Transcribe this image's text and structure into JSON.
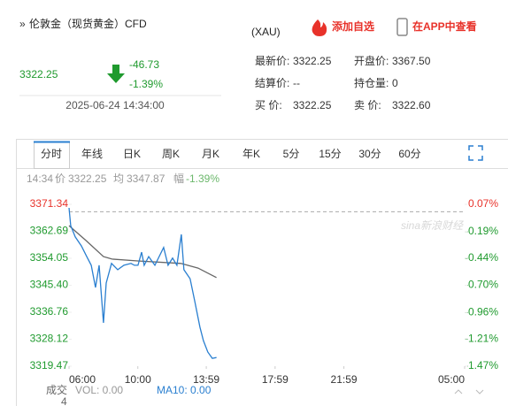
{
  "header": {
    "title": "伦敦金（现货黄金）CFD",
    "subtitle": "(XAU)",
    "add_watchlist": "添加自选",
    "open_app": "在APP中查看"
  },
  "quote": {
    "price": "3322.25",
    "change": "-46.73",
    "change_pct": "-1.39%",
    "time": "2025-06-24 14:34:00"
  },
  "fields": [
    {
      "label": "最新价:",
      "value": "3322.25"
    },
    {
      "label": "开盘价:",
      "value": "3367.50"
    },
    {
      "label": "结算价:",
      "value": "--"
    },
    {
      "label": "持仓量:",
      "value": "0"
    },
    {
      "label": "买  价:",
      "value": "3322.25"
    },
    {
      "label": "卖  价:",
      "value": "3322.60"
    }
  ],
  "tabs": [
    "分时",
    "年线",
    "日K",
    "周K",
    "月K",
    "年K",
    "5分",
    "15分",
    "30分",
    "60分"
  ],
  "info_line": [
    "14:34",
    "价",
    "3322.25",
    "均",
    "3347.87",
    "幅",
    "-1.39%"
  ],
  "watermark": "sina新浪财经",
  "chart_data": {
    "type": "line",
    "xlim": [
      0,
      23
    ],
    "xticks": [
      {
        "value": 0,
        "label": "06:00"
      },
      {
        "value": 4,
        "label": "10:00"
      },
      {
        "value": 7.98,
        "label": "13:59"
      },
      {
        "value": 11.98,
        "label": "17:59"
      },
      {
        "value": 15.98,
        "label": "21:59"
      },
      {
        "value": 23,
        "label": "05:00"
      }
    ],
    "ylim": [
      3319.47,
      3371.34
    ],
    "yticks": [
      3371.34,
      3362.69,
      3354.05,
      {
        "value": 3345.4,
        "label": "3345.40"
      },
      3336.76,
      3328.12,
      3319.47
    ],
    "y2lim": [
      -1.47,
      0.07
    ],
    "y2ticks": [
      {
        "value": 0.07,
        "label": "0.07%"
      },
      {
        "value": -0.19,
        "label": "-0.19%"
      },
      {
        "value": -0.44,
        "label": "-0.44%"
      },
      {
        "value": -0.7,
        "label": "-0.70%"
      },
      {
        "value": -0.96,
        "label": "-0.96%"
      },
      {
        "value": -1.21,
        "label": "-1.21%"
      },
      {
        "value": -1.47,
        "label": "-1.47%"
      }
    ],
    "prev_close": 3368.98,
    "series": [
      {
        "color": "#2a7fd0",
        "x": [
          0,
          0.1,
          0.36,
          0.72,
          1.03,
          1.29,
          1.54,
          1.75,
          2.0,
          2.16,
          2.47,
          2.83,
          3.19,
          3.6,
          3.8,
          4.01,
          4.22,
          4.37,
          4.63,
          4.99,
          5.24,
          5.5,
          5.76,
          6.02,
          6.27,
          6.53,
          6.68,
          7.04,
          7.3,
          7.61,
          7.81,
          8.07,
          8.33,
          8.57
        ],
        "values": [
          3370.2,
          3364.5,
          3360.9,
          3358.0,
          3354.6,
          3351.8,
          3344.7,
          3351.8,
          3333.4,
          3346.1,
          3352.4,
          3350.4,
          3351.8,
          3352.4,
          3351.8,
          3351.8,
          3356.0,
          3351.8,
          3354.6,
          3351.8,
          3354.6,
          3357.5,
          3351.8,
          3354.1,
          3351.8,
          3361.7,
          3350.4,
          3347.5,
          3340.5,
          3332.0,
          3327.7,
          3324.0,
          3322.0,
          3322.25
        ]
      },
      {
        "color": "#666666",
        "x": [
          0,
          1.0,
          2.0,
          2.5,
          4.0,
          6.5,
          7.5,
          8.57
        ],
        "values": [
          3364.5,
          3359.7,
          3354.6,
          3353.8,
          3353.2,
          3352.4,
          3350.9,
          3347.87
        ]
      }
    ]
  },
  "volume": {
    "label": "成交",
    "vol": "VOL: 0.00",
    "ma10": "MA10: 0.00",
    "extra": "4"
  }
}
